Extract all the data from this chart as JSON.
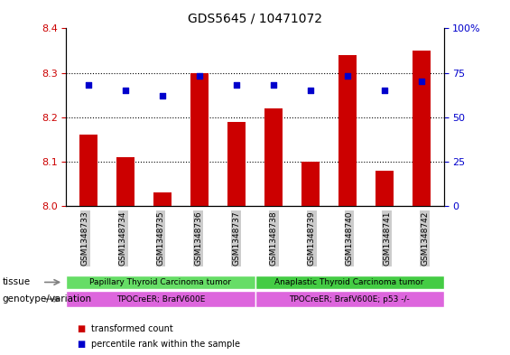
{
  "title": "GDS5645 / 10471072",
  "samples": [
    "GSM1348733",
    "GSM1348734",
    "GSM1348735",
    "GSM1348736",
    "GSM1348737",
    "GSM1348738",
    "GSM1348739",
    "GSM1348740",
    "GSM1348741",
    "GSM1348742"
  ],
  "bar_values": [
    8.16,
    8.11,
    8.03,
    8.3,
    8.19,
    8.22,
    8.1,
    8.34,
    8.08,
    8.35
  ],
  "percentile_values": [
    68,
    65,
    62,
    73,
    68,
    68,
    65,
    73,
    65,
    70
  ],
  "bar_color": "#cc0000",
  "percentile_color": "#0000cc",
  "ylim_left": [
    8.0,
    8.4
  ],
  "ylim_right": [
    0,
    100
  ],
  "yticks_left": [
    8.0,
    8.1,
    8.2,
    8.3,
    8.4
  ],
  "yticks_right": [
    0,
    25,
    50,
    75,
    100
  ],
  "ytick_labels_right": [
    "0",
    "25",
    "50",
    "75",
    "100%"
  ],
  "grid_values": [
    8.1,
    8.2,
    8.3
  ],
  "tissue_group1_label": "Papillary Thyroid Carcinoma tumor",
  "tissue_group2_label": "Anaplastic Thyroid Carcinoma tumor",
  "genotype_group1_label": "TPOCreER; BrafV600E",
  "genotype_group2_label": "TPOCreER; BrafV600E; p53 -/-",
  "tissue_color1": "#66dd66",
  "tissue_color2": "#44cc44",
  "genotype_color": "#dd66dd",
  "group1_count": 5,
  "group2_count": 5,
  "legend_red_label": "transformed count",
  "legend_blue_label": "percentile rank within the sample",
  "tissue_row_label": "tissue",
  "genotype_row_label": "genotype/variation",
  "xlabel_color_left": "#cc0000",
  "xlabel_color_right": "#0000cc",
  "bar_width": 0.5,
  "xticklabel_bg": "#cccccc"
}
